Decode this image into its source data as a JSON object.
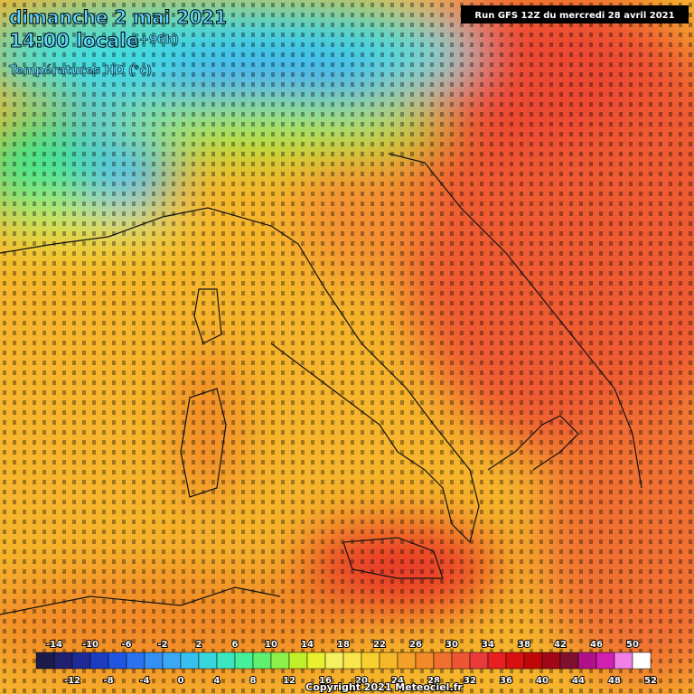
{
  "header": {
    "date": "dimanche 2 mai 2021",
    "time": "14:00 locale",
    "lead": "(+96h)",
    "product": "Températures HD (°c)",
    "run": "Run GFS 12Z du mercredi 28 avril 2021"
  },
  "legend": {
    "labels": [
      "-14",
      "-12",
      "-10",
      "-8",
      "-6",
      "-4",
      "-2",
      "0",
      "2",
      "4",
      "6",
      "8",
      "10",
      "12",
      "14",
      "16",
      "18",
      "20",
      "22",
      "24",
      "26",
      "28",
      "30",
      "32",
      "34",
      "36",
      "38",
      "40",
      "42",
      "44",
      "46",
      "48",
      "50",
      "52"
    ],
    "colors": [
      "#1c1c4c",
      "#202070",
      "#1e2a96",
      "#1d3cbf",
      "#1f55e0",
      "#2a72f0",
      "#3590f5",
      "#3aa8f5",
      "#37c0f0",
      "#3ad6e0",
      "#3ce6c0",
      "#45f09a",
      "#5ff070",
      "#8ef04a",
      "#bff02a",
      "#e8f030",
      "#f5f060",
      "#f8e64a",
      "#f5d030",
      "#f5b82a",
      "#f5a028",
      "#f28a28",
      "#f07030",
      "#ee5535",
      "#ea3a3a",
      "#e82020",
      "#d81010",
      "#c00808",
      "#a00818",
      "#801030",
      "#b0108a",
      "#d020b0",
      "#f080e8",
      "#ffffff"
    ]
  },
  "footer": {
    "copyright": "Copyright 2021 Meteociel.fr"
  }
}
